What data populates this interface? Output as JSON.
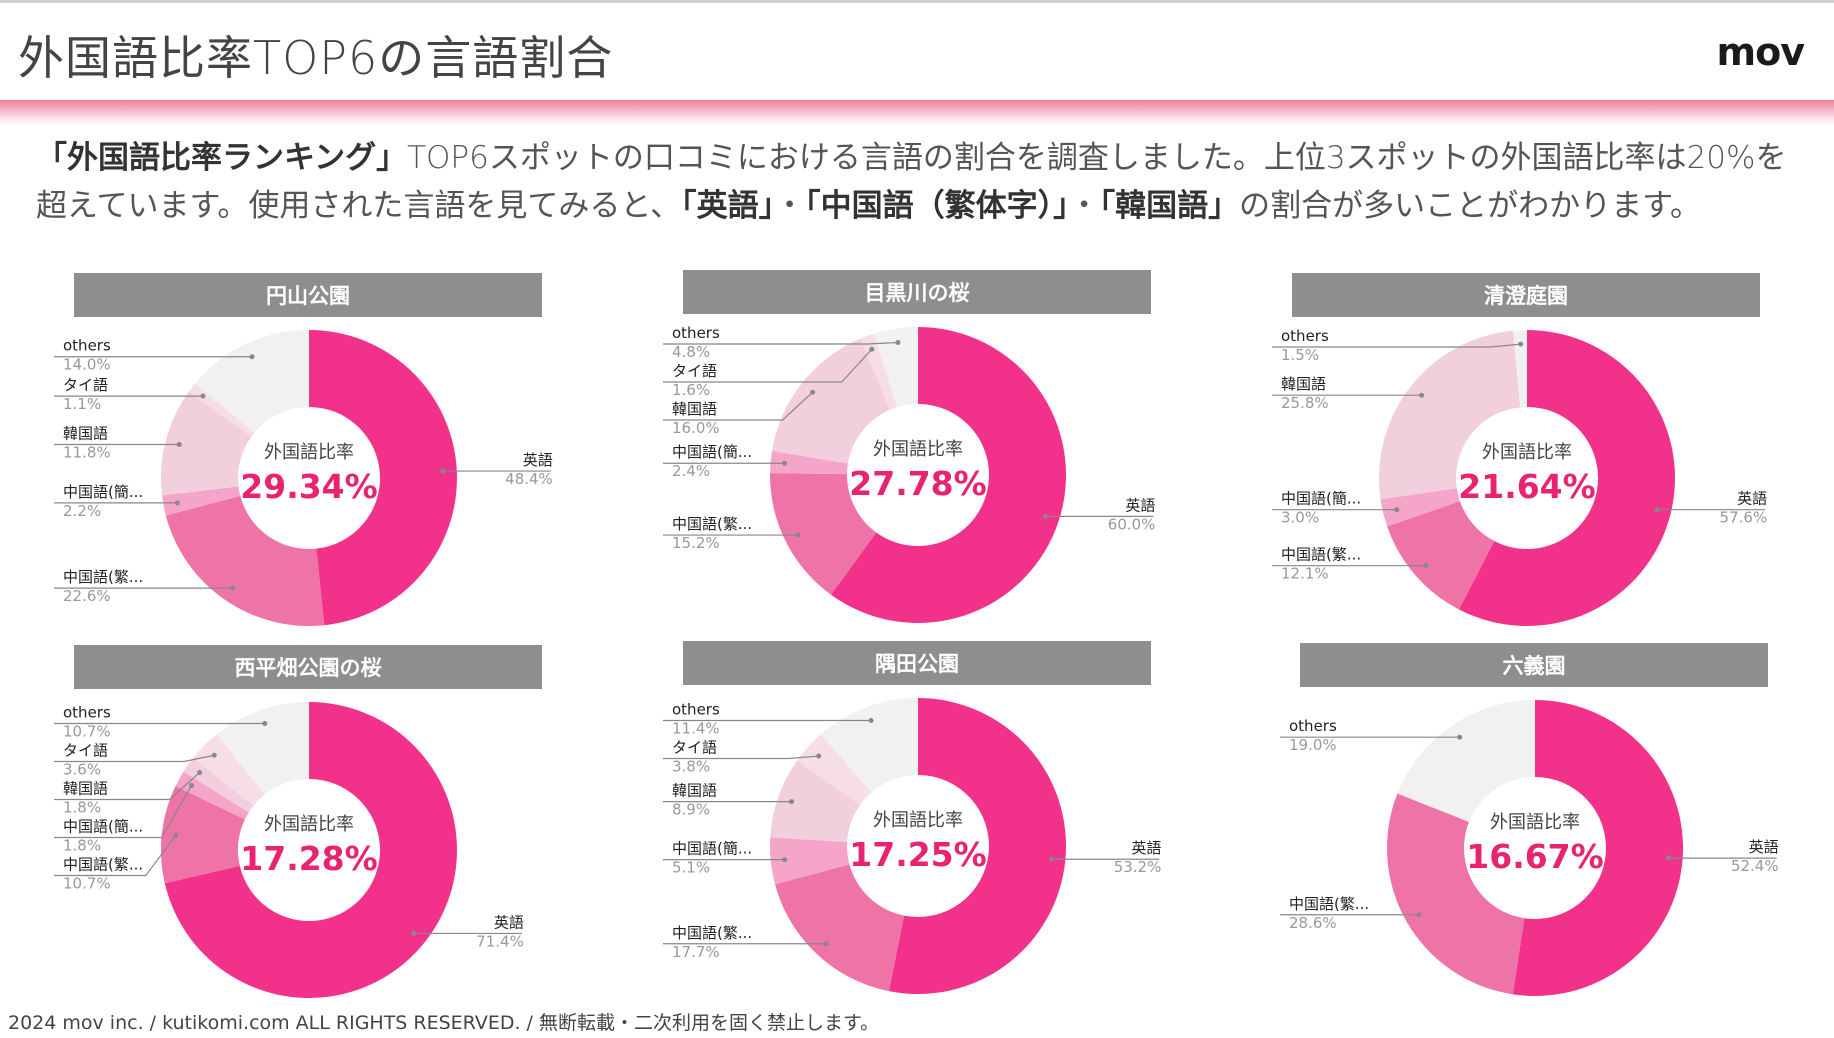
{
  "header": {
    "title": "外国語比率TOP6の言語割合",
    "logo": "mov"
  },
  "intro": {
    "q1": "「外国語比率ランキング」",
    "t1": "TOP6スポットの口コミにおける言語の割合を調査しました。上位3スポットの外国語比率は20%を超えています。使用された言語を見てみると、",
    "q2": "「英語」",
    "sep1": "・",
    "q3": "「中国語（繁体字）」",
    "sep2": "・",
    "q4": "「韓国語」",
    "t2": "の割合が多いことがわかります。"
  },
  "center_label": "外国語比率",
  "colors": {
    "english": "#f2318a",
    "zh_trad": "#ee73a6",
    "zh_simp": "#f5a6c8",
    "korean": "#f2cfdd",
    "thai": "#f7dde7",
    "others": "#f1f1f1",
    "center_value": "#e8236f"
  },
  "chart_data": [
    {
      "type": "pie",
      "title": "円山公園",
      "center_value": "29.34%",
      "slices": [
        {
          "label": "英語",
          "value": 48.4,
          "display": "48.4%",
          "key": "english"
        },
        {
          "label": "中国語(繁...",
          "value": 22.6,
          "display": "22.6%",
          "key": "zh_trad"
        },
        {
          "label": "中国語(簡...",
          "value": 2.2,
          "display": "2.2%",
          "key": "zh_simp"
        },
        {
          "label": "韓国語",
          "value": 11.8,
          "display": "11.8%",
          "key": "korean"
        },
        {
          "label": "タイ語",
          "value": 1.1,
          "display": "1.1%",
          "key": "thai"
        },
        {
          "label": "others",
          "value": 14.0,
          "display": "14.0%",
          "key": "others"
        }
      ]
    },
    {
      "type": "pie",
      "title": "目黒川の桜",
      "center_value": "27.78%",
      "slices": [
        {
          "label": "英語",
          "value": 60.0,
          "display": "60.0%",
          "key": "english"
        },
        {
          "label": "中国語(繁...",
          "value": 15.2,
          "display": "15.2%",
          "key": "zh_trad"
        },
        {
          "label": "中国語(簡...",
          "value": 2.4,
          "display": "2.4%",
          "key": "zh_simp"
        },
        {
          "label": "韓国語",
          "value": 16.0,
          "display": "16.0%",
          "key": "korean"
        },
        {
          "label": "タイ語",
          "value": 1.6,
          "display": "1.6%",
          "key": "thai"
        },
        {
          "label": "others",
          "value": 4.8,
          "display": "4.8%",
          "key": "others"
        }
      ]
    },
    {
      "type": "pie",
      "title": "清澄庭園",
      "center_value": "21.64%",
      "slices": [
        {
          "label": "英語",
          "value": 57.6,
          "display": "57.6%",
          "key": "english"
        },
        {
          "label": "中国語(繁...",
          "value": 12.1,
          "display": "12.1%",
          "key": "zh_trad"
        },
        {
          "label": "中国語(簡...",
          "value": 3.0,
          "display": "3.0%",
          "key": "zh_simp"
        },
        {
          "label": "韓国語",
          "value": 25.8,
          "display": "25.8%",
          "key": "korean"
        },
        {
          "label": "others",
          "value": 1.5,
          "display": "1.5%",
          "key": "others"
        }
      ]
    },
    {
      "type": "pie",
      "title": "西平畑公園の桜",
      "center_value": "17.28%",
      "slices": [
        {
          "label": "英語",
          "value": 71.4,
          "display": "71.4%",
          "key": "english"
        },
        {
          "label": "中国語(繁...",
          "value": 10.7,
          "display": "10.7%",
          "key": "zh_trad"
        },
        {
          "label": "中国語(簡...",
          "value": 1.8,
          "display": "1.8%",
          "key": "zh_simp"
        },
        {
          "label": "韓国語",
          "value": 1.8,
          "display": "1.8%",
          "key": "korean"
        },
        {
          "label": "タイ語",
          "value": 3.6,
          "display": "3.6%",
          "key": "thai"
        },
        {
          "label": "others",
          "value": 10.7,
          "display": "10.7%",
          "key": "others"
        }
      ]
    },
    {
      "type": "pie",
      "title": "隅田公園",
      "center_value": "17.25%",
      "slices": [
        {
          "label": "英語",
          "value": 53.2,
          "display": "53.2%",
          "key": "english"
        },
        {
          "label": "中国語(繁...",
          "value": 17.7,
          "display": "17.7%",
          "key": "zh_trad"
        },
        {
          "label": "中国語(簡...",
          "value": 5.1,
          "display": "5.1%",
          "key": "zh_simp"
        },
        {
          "label": "韓国語",
          "value": 8.9,
          "display": "8.9%",
          "key": "korean"
        },
        {
          "label": "タイ語",
          "value": 3.8,
          "display": "3.8%",
          "key": "thai"
        },
        {
          "label": "others",
          "value": 11.4,
          "display": "11.4%",
          "key": "others"
        }
      ]
    },
    {
      "type": "pie",
      "title": "六義園",
      "center_value": "16.67%",
      "slices": [
        {
          "label": "英語",
          "value": 52.4,
          "display": "52.4%",
          "key": "english"
        },
        {
          "label": "中国語(繁...",
          "value": 28.6,
          "display": "28.6%",
          "key": "zh_trad"
        },
        {
          "label": "others",
          "value": 19.0,
          "display": "19.0%",
          "key": "others"
        }
      ]
    }
  ],
  "footer": "2024 mov inc. / kutikomi.com ALL RIGHTS RESERVED. / 無断転載・二次利用を固く禁止します。"
}
